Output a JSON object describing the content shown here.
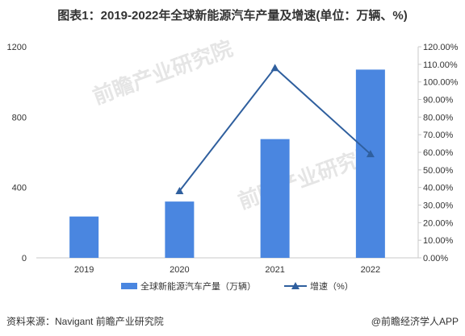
{
  "title": "图表1：2019-2022年全球新能源汽车产量及增速(单位：万辆、%)",
  "source_label": "资料来源：Navigant 前瞻产业研究院",
  "brand_label": "@前瞻经济学人APP",
  "watermark": "前瞻产业研究院",
  "chart_data": {
    "type": "bar",
    "categories": [
      "2019",
      "2020",
      "2021",
      "2022"
    ],
    "series": [
      {
        "name": "全球新能源汽车产量（万辆）",
        "type": "bar",
        "axis": "left",
        "values": [
          235,
          320,
          675,
          1070
        ],
        "color": "#4a86e0"
      },
      {
        "name": "增速（%）",
        "type": "line",
        "axis": "right",
        "values": [
          null,
          38,
          108,
          59
        ],
        "color": "#2f5f9e"
      }
    ],
    "y_left": {
      "min": 0,
      "max": 1200,
      "ticks": [
        "0",
        "400",
        "800",
        "1200"
      ]
    },
    "y_right": {
      "min": 0,
      "max": 120,
      "ticks": [
        "0.00%",
        "10.00%",
        "20.00%",
        "30.00%",
        "40.00%",
        "50.00%",
        "60.00%",
        "70.00%",
        "80.00%",
        "90.00%",
        "100.00%",
        "110.00%",
        "120.00%"
      ]
    },
    "grid": false,
    "legend_position": "bottom"
  }
}
